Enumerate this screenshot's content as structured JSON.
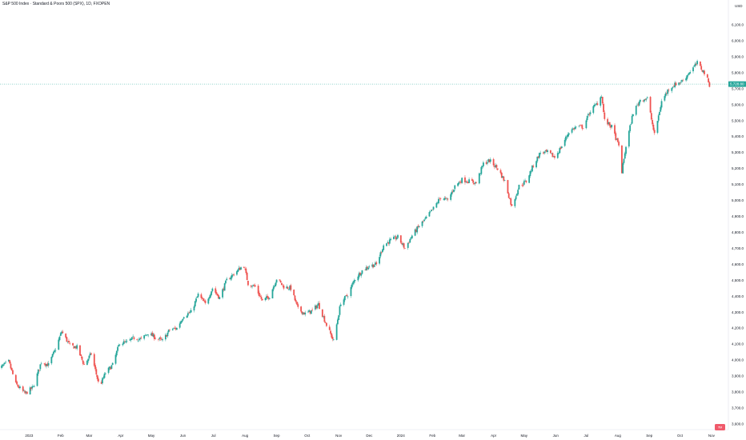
{
  "window": {
    "title": "S&P 500 Index · Standard & Poors 500 (SPX), 1D, FXOPEN"
  },
  "colors": {
    "up": "#26a69a",
    "down": "#ef5350",
    "wick_up": "#9e9e9e",
    "wick_down": "#9e9e9e",
    "current_line": "#26a69a",
    "grid": "#f0f3fa",
    "axis_text": "#131722"
  },
  "price_axis": {
    "currency": "USD",
    "current_price_label": "5,728.80",
    "current_sub_label": "5,728.80"
  },
  "logo": {
    "icon": "tradingview-logo-icon",
    "text": "TV"
  },
  "chart_data": {
    "type": "candlestick",
    "title": "S&P 500 Index · Standard & Poors 500 (SPX), 1D, FXOPEN",
    "xlabel": "",
    "ylabel": "",
    "ylim": [
      3600,
      6400
    ],
    "grid": false,
    "y_ticks": [
      "3,600.0",
      "3,700.0",
      "3,800.0",
      "3,900.0",
      "4,000.0",
      "4,100.0",
      "4,200.0",
      "4,300.0",
      "4,400.0",
      "4,500.0",
      "4,600.0",
      "4,700.0",
      "4,800.0",
      "4,900.0",
      "5,000.0",
      "5,100.0",
      "5,200.0",
      "5,300.0",
      "5,400.0",
      "5,500.0",
      "5,600.0",
      "5,700.0",
      "5,800.0",
      "5,900.0",
      "6,000.0",
      "6,100.0"
    ],
    "y_tick_values": [
      3600,
      3700,
      3800,
      3900,
      4000,
      4100,
      4200,
      4300,
      4400,
      4500,
      4600,
      4700,
      4800,
      4900,
      5000,
      5100,
      5200,
      5300,
      5400,
      5500,
      5600,
      5700,
      5800,
      5900,
      6000,
      6100
    ],
    "x_ticks": [
      "2023",
      "Feb",
      "Mar",
      "Apr",
      "May",
      "Jun",
      "Jul",
      "Aug",
      "Sep",
      "Oct",
      "Nov",
      "Dec",
      "2024",
      "Feb",
      "Mar",
      "Apr",
      "May",
      "Jun",
      "Jul",
      "Aug",
      "Sep",
      "Oct",
      "Nov"
    ],
    "x_tick_dates": [
      "2023-01-01",
      "2023-02-01",
      "2023-03-01",
      "2023-04-01",
      "2023-05-01",
      "2023-06-01",
      "2023-07-01",
      "2023-08-01",
      "2023-09-01",
      "2023-10-01",
      "2023-11-01",
      "2023-12-01",
      "2024-01-01",
      "2024-02-01",
      "2024-03-01",
      "2024-04-01",
      "2024-05-01",
      "2024-06-01",
      "2024-07-01",
      "2024-08-01",
      "2024-09-01",
      "2024-10-01",
      "2024-11-01"
    ],
    "current_price": 5728.8,
    "series_close": [
      [
        "2022-12-01",
        3940
      ],
      [
        "2022-12-12",
        3990
      ],
      [
        "2022-12-19",
        3850
      ],
      [
        "2022-12-28",
        3790
      ],
      [
        "2023-01-05",
        3830
      ],
      [
        "2023-01-13",
        3990
      ],
      [
        "2023-01-20",
        3970
      ],
      [
        "2023-01-27",
        4070
      ],
      [
        "2023-02-02",
        4180
      ],
      [
        "2023-02-10",
        4090
      ],
      [
        "2023-02-17",
        4080
      ],
      [
        "2023-02-24",
        3970
      ],
      [
        "2023-03-03",
        4040
      ],
      [
        "2023-03-10",
        3860
      ],
      [
        "2023-03-13",
        3860
      ],
      [
        "2023-03-17",
        3920
      ],
      [
        "2023-03-24",
        3970
      ],
      [
        "2023-03-31",
        4110
      ],
      [
        "2023-04-07",
        4110
      ],
      [
        "2023-04-14",
        4140
      ],
      [
        "2023-04-21",
        4130
      ],
      [
        "2023-04-28",
        4170
      ],
      [
        "2023-05-05",
        4140
      ],
      [
        "2023-05-12",
        4120
      ],
      [
        "2023-05-19",
        4190
      ],
      [
        "2023-05-26",
        4200
      ],
      [
        "2023-06-02",
        4280
      ],
      [
        "2023-06-09",
        4300
      ],
      [
        "2023-06-16",
        4410
      ],
      [
        "2023-06-23",
        4350
      ],
      [
        "2023-06-30",
        4450
      ],
      [
        "2023-07-07",
        4390
      ],
      [
        "2023-07-14",
        4500
      ],
      [
        "2023-07-21",
        4540
      ],
      [
        "2023-07-28",
        4580
      ],
      [
        "2023-07-31",
        4590
      ],
      [
        "2023-08-04",
        4480
      ],
      [
        "2023-08-11",
        4460
      ],
      [
        "2023-08-18",
        4370
      ],
      [
        "2023-08-25",
        4400
      ],
      [
        "2023-09-01",
        4510
      ],
      [
        "2023-09-08",
        4460
      ],
      [
        "2023-09-15",
        4450
      ],
      [
        "2023-09-22",
        4320
      ],
      [
        "2023-09-29",
        4290
      ],
      [
        "2023-10-06",
        4310
      ],
      [
        "2023-10-12",
        4350
      ],
      [
        "2023-10-20",
        4220
      ],
      [
        "2023-10-27",
        4120
      ],
      [
        "2023-11-03",
        4360
      ],
      [
        "2023-11-10",
        4410
      ],
      [
        "2023-11-17",
        4510
      ],
      [
        "2023-11-24",
        4560
      ],
      [
        "2023-12-01",
        4590
      ],
      [
        "2023-12-08",
        4600
      ],
      [
        "2023-12-15",
        4720
      ],
      [
        "2023-12-22",
        4750
      ],
      [
        "2023-12-29",
        4770
      ],
      [
        "2024-01-05",
        4700
      ],
      [
        "2024-01-12",
        4780
      ],
      [
        "2024-01-19",
        4840
      ],
      [
        "2024-01-26",
        4890
      ],
      [
        "2024-02-02",
        4950
      ],
      [
        "2024-02-09",
        5020
      ],
      [
        "2024-02-16",
        5000
      ],
      [
        "2024-02-23",
        5090
      ],
      [
        "2024-03-01",
        5130
      ],
      [
        "2024-03-08",
        5120
      ],
      [
        "2024-03-15",
        5110
      ],
      [
        "2024-03-22",
        5230
      ],
      [
        "2024-03-28",
        5250
      ],
      [
        "2024-04-05",
        5200
      ],
      [
        "2024-04-12",
        5120
      ],
      [
        "2024-04-19",
        4960
      ],
      [
        "2024-04-26",
        5090
      ],
      [
        "2024-05-03",
        5120
      ],
      [
        "2024-05-10",
        5220
      ],
      [
        "2024-05-17",
        5300
      ],
      [
        "2024-05-24",
        5300
      ],
      [
        "2024-05-31",
        5270
      ],
      [
        "2024-06-07",
        5340
      ],
      [
        "2024-06-14",
        5430
      ],
      [
        "2024-06-21",
        5460
      ],
      [
        "2024-06-28",
        5460
      ],
      [
        "2024-07-05",
        5560
      ],
      [
        "2024-07-12",
        5610
      ],
      [
        "2024-07-16",
        5660
      ],
      [
        "2024-07-19",
        5500
      ],
      [
        "2024-07-26",
        5460
      ],
      [
        "2024-08-02",
        5340
      ],
      [
        "2024-08-05",
        5180
      ],
      [
        "2024-08-09",
        5340
      ],
      [
        "2024-08-16",
        5550
      ],
      [
        "2024-08-23",
        5630
      ],
      [
        "2024-08-30",
        5640
      ],
      [
        "2024-09-06",
        5410
      ],
      [
        "2024-09-13",
        5620
      ],
      [
        "2024-09-20",
        5700
      ],
      [
        "2024-09-27",
        5730
      ],
      [
        "2024-10-04",
        5750
      ],
      [
        "2024-10-11",
        5810
      ],
      [
        "2024-10-18",
        5860
      ],
      [
        "2024-10-25",
        5800
      ],
      [
        "2024-10-31",
        5710
      ]
    ]
  }
}
